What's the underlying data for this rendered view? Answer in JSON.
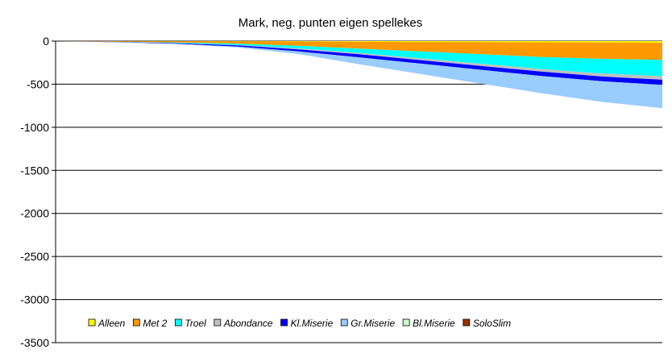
{
  "chart_data": {
    "type": "area",
    "stacked": true,
    "title": "Mark, neg. punten eigen spellekes",
    "xlabel": "",
    "ylabel": "",
    "ylim": [
      -3500,
      0
    ],
    "yticks": [
      0,
      -500,
      -1000,
      -1500,
      -2000,
      -2500,
      -3000,
      -3500
    ],
    "grid": "horizontal",
    "legend_position": "bottom-left inside plot",
    "x": [
      0,
      10,
      20,
      30,
      40,
      50,
      60,
      70,
      80,
      90,
      100
    ],
    "series": [
      {
        "name": "Alleen",
        "color": "#ffff00",
        "values": [
          0,
          -2,
          -3,
          -4,
          -5,
          -8,
          -10,
          -12,
          -14,
          -16,
          -18
        ]
      },
      {
        "name": "Met 2",
        "color": "#ff9900",
        "values": [
          0,
          -6,
          -14,
          -25,
          -50,
          -80,
          -110,
          -140,
          -170,
          -190,
          -200
        ]
      },
      {
        "name": "Troel",
        "color": "#00ffff",
        "values": [
          0,
          -1,
          -5,
          -15,
          -30,
          -50,
          -80,
          -110,
          -140,
          -170,
          -190
        ]
      },
      {
        "name": "Abondance",
        "color": "#c0c0c0",
        "values": [
          0,
          -1,
          -2,
          -5,
          -10,
          -15,
          -20,
          -25,
          -30,
          -35,
          -40
        ]
      },
      {
        "name": "Kl.Miserie",
        "color": "#0000ff",
        "values": [
          0,
          -3,
          -8,
          -15,
          -25,
          -35,
          -40,
          -45,
          -50,
          -55,
          -60
        ]
      },
      {
        "name": "Gr.Miserie",
        "color": "#99ccff",
        "values": [
          0,
          -1,
          -3,
          -10,
          -30,
          -80,
          -120,
          -160,
          -200,
          -240,
          -270
        ]
      },
      {
        "name": "Bl.Miserie",
        "color": "#ccffcc",
        "values": [
          0,
          0,
          0,
          0,
          0,
          0,
          0,
          0,
          0,
          0,
          0
        ]
      },
      {
        "name": "SoloSlim",
        "color": "#993300",
        "values": [
          0,
          0,
          0,
          0,
          0,
          0,
          0,
          0,
          0,
          0,
          0
        ]
      }
    ]
  }
}
